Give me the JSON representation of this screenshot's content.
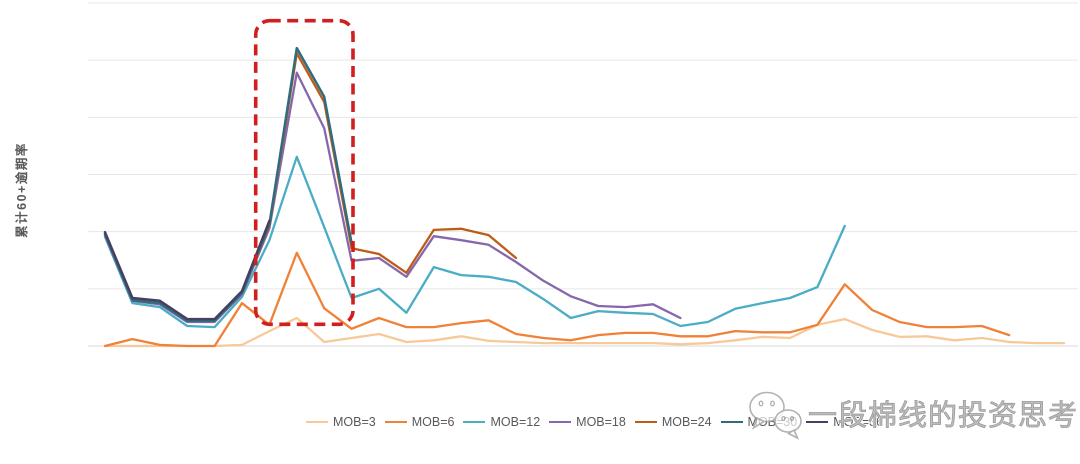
{
  "figure": {
    "y_axis_label": "累计60+逾期率"
  },
  "watermark": {
    "icon": "wechat-icon",
    "text": "一段棉线的投资思考"
  },
  "chart_data": {
    "type": "line",
    "title": "",
    "xlabel": "",
    "ylabel": "累计60+逾期率",
    "x_axis": {
      "tick_labels_visible": false,
      "num_points": 36,
      "note": "x = cohort index 0-35; no tick labels shown in image"
    },
    "y_axis": {
      "tick_labels_visible": false,
      "gridline_unit_values": [
        0,
        1,
        2,
        3,
        4,
        5,
        6
      ],
      "ylim": [
        0,
        6.3
      ],
      "note": "no numeric labels shown; values normalized so 1.0 = one gridline spacing"
    },
    "grid": true,
    "legend_position": "bottom",
    "colors": {
      "gridline": "#e7e7e7",
      "baseline": "#d9d9d9",
      "highlight_box": "#d01f1f",
      "text": "#595959"
    },
    "series": [
      {
        "name": "MOB=3",
        "color": "#f7c998",
        "points": [
          [
            0,
            0
          ],
          [
            1,
            0
          ],
          [
            2,
            0
          ],
          [
            3,
            0
          ],
          [
            4,
            0
          ],
          [
            5,
            0.02
          ],
          [
            6,
            0.26
          ],
          [
            7,
            0.49
          ],
          [
            8,
            0.07
          ],
          [
            9,
            0.14
          ],
          [
            10,
            0.21
          ],
          [
            11,
            0.07
          ],
          [
            12,
            0.1
          ],
          [
            13,
            0.17
          ],
          [
            14,
            0.09
          ],
          [
            15,
            0.07
          ],
          [
            16,
            0.05
          ],
          [
            17,
            0.05
          ],
          [
            18,
            0.05
          ],
          [
            19,
            0.05
          ],
          [
            20,
            0.05
          ],
          [
            21,
            0.03
          ],
          [
            22,
            0.05
          ],
          [
            23,
            0.1
          ],
          [
            24,
            0.16
          ],
          [
            25,
            0.14
          ],
          [
            26,
            0.37
          ],
          [
            27,
            0.47
          ],
          [
            28,
            0.28
          ],
          [
            29,
            0.16
          ],
          [
            30,
            0.17
          ],
          [
            31,
            0.1
          ],
          [
            32,
            0.14
          ],
          [
            33,
            0.07
          ],
          [
            34,
            0.05
          ],
          [
            35,
            0.05
          ]
        ]
      },
      {
        "name": "MOB=6",
        "color": "#f08138",
        "points": [
          [
            0,
            0
          ],
          [
            1,
            0.12
          ],
          [
            2,
            0.02
          ],
          [
            3,
            0
          ],
          [
            4,
            0
          ],
          [
            5,
            0.75
          ],
          [
            6,
            0.37
          ],
          [
            7,
            1.63
          ],
          [
            8,
            0.66
          ],
          [
            9,
            0.3
          ],
          [
            10,
            0.49
          ],
          [
            11,
            0.33
          ],
          [
            12,
            0.33
          ],
          [
            13,
            0.4
          ],
          [
            14,
            0.45
          ],
          [
            15,
            0.21
          ],
          [
            16,
            0.14
          ],
          [
            17,
            0.1
          ],
          [
            18,
            0.19
          ],
          [
            19,
            0.23
          ],
          [
            20,
            0.23
          ],
          [
            21,
            0.17
          ],
          [
            22,
            0.17
          ],
          [
            23,
            0.26
          ],
          [
            24,
            0.24
          ],
          [
            25,
            0.24
          ],
          [
            26,
            0.37
          ],
          [
            27,
            1.08
          ],
          [
            28,
            0.63
          ],
          [
            29,
            0.42
          ],
          [
            30,
            0.33
          ],
          [
            31,
            0.33
          ],
          [
            32,
            0.35
          ],
          [
            33,
            0.19
          ]
        ]
      },
      {
        "name": "MOB=12",
        "color": "#4bacc6",
        "points": [
          [
            0,
            1.91
          ],
          [
            1,
            0.75
          ],
          [
            2,
            0.68
          ],
          [
            3,
            0.35
          ],
          [
            4,
            0.33
          ],
          [
            5,
            0.86
          ],
          [
            6,
            1.85
          ],
          [
            7,
            3.31
          ],
          [
            8,
            2.08
          ],
          [
            9,
            0.84
          ],
          [
            10,
            1.0
          ],
          [
            11,
            0.58
          ],
          [
            12,
            1.38
          ],
          [
            13,
            1.24
          ],
          [
            14,
            1.21
          ],
          [
            15,
            1.12
          ],
          [
            16,
            0.82
          ],
          [
            17,
            0.49
          ],
          [
            18,
            0.61
          ],
          [
            19,
            0.58
          ],
          [
            20,
            0.56
          ],
          [
            21,
            0.35
          ],
          [
            22,
            0.42
          ],
          [
            23,
            0.65
          ],
          [
            24,
            0.75
          ],
          [
            25,
            0.84
          ],
          [
            26,
            1.03
          ],
          [
            27,
            2.1
          ]
        ]
      },
      {
        "name": "MOB=18",
        "color": "#8667ad",
        "points": [
          [
            0,
            1.94
          ],
          [
            1,
            0.79
          ],
          [
            2,
            0.73
          ],
          [
            3,
            0.42
          ],
          [
            4,
            0.42
          ],
          [
            5,
            0.91
          ],
          [
            6,
            2.06
          ],
          [
            7,
            4.78
          ],
          [
            8,
            3.81
          ],
          [
            9,
            1.49
          ],
          [
            10,
            1.54
          ],
          [
            11,
            1.21
          ],
          [
            12,
            1.92
          ],
          [
            13,
            1.85
          ],
          [
            14,
            1.77
          ],
          [
            15,
            1.47
          ],
          [
            16,
            1.14
          ],
          [
            17,
            0.87
          ],
          [
            18,
            0.7
          ],
          [
            19,
            0.68
          ],
          [
            20,
            0.73
          ],
          [
            21,
            0.49
          ]
        ]
      },
      {
        "name": "MOB=24",
        "color": "#bf5b17",
        "points": [
          [
            0,
            1.96
          ],
          [
            1,
            0.8
          ],
          [
            2,
            0.75
          ],
          [
            3,
            0.44
          ],
          [
            4,
            0.44
          ],
          [
            5,
            0.93
          ],
          [
            6,
            2.1
          ],
          [
            7,
            5.12
          ],
          [
            8,
            4.27
          ],
          [
            9,
            1.71
          ],
          [
            10,
            1.61
          ],
          [
            11,
            1.28
          ],
          [
            12,
            2.03
          ],
          [
            13,
            2.05
          ],
          [
            14,
            1.94
          ],
          [
            15,
            1.54
          ]
        ]
      },
      {
        "name": "MOB=30",
        "color": "#2f6d7e",
        "width": 2.5,
        "points": [
          [
            0,
            1.96
          ],
          [
            1,
            0.8
          ],
          [
            2,
            0.75
          ],
          [
            3,
            0.44
          ],
          [
            4,
            0.44
          ],
          [
            5,
            0.93
          ],
          [
            6,
            2.13
          ],
          [
            7,
            5.21
          ],
          [
            8,
            4.36
          ],
          [
            9,
            1.8
          ]
        ]
      },
      {
        "name": "MOB=36",
        "color": "#454062",
        "width": 2.5,
        "points": [
          [
            0,
            1.99
          ],
          [
            1,
            0.84
          ],
          [
            2,
            0.79
          ],
          [
            3,
            0.47
          ],
          [
            4,
            0.47
          ],
          [
            5,
            0.96
          ],
          [
            6,
            2.19
          ]
        ]
      }
    ],
    "annotation_box": {
      "type": "dashed-rect",
      "color": "#d01f1f",
      "x_from": 5.5,
      "x_to": 9.05,
      "v_from": 0.38,
      "v_to": 5.69
    }
  }
}
